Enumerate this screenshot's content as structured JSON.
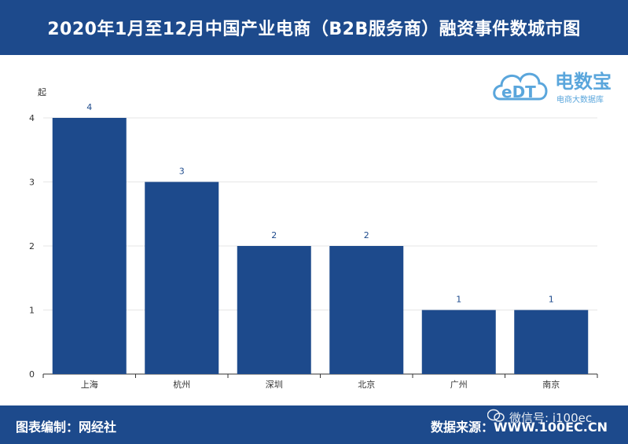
{
  "header": {
    "title": "2020年1月至12月中国产业电商（B2B服务商）融资事件数城市图"
  },
  "logo": {
    "brand_text": "电数宝",
    "sub_text": "电商大数据库",
    "mark_text": "eDT"
  },
  "footer": {
    "credit": "图表编制：网经社",
    "source": "数据来源：WWW.100EC.CN"
  },
  "watermark": {
    "text": "微信号: i100ec"
  },
  "colors": {
    "bar": "#1d4a8c",
    "header_bg": "#1d4a8c",
    "label": "#1d4a8c",
    "logo": "#5aa6dc"
  },
  "chart_data": {
    "type": "bar",
    "title": "2020年1月至12月中国产业电商（B2B服务商）融资事件数城市图",
    "ylabel": "起",
    "xlabel": "",
    "categories": [
      "上海",
      "杭州",
      "深圳",
      "北京",
      "广州",
      "南京"
    ],
    "values": [
      4,
      3,
      2,
      2,
      1,
      1
    ],
    "yticks": [
      0,
      1,
      2,
      3,
      4
    ],
    "ylim": [
      0,
      4
    ],
    "grid": true,
    "data_labels": true
  }
}
